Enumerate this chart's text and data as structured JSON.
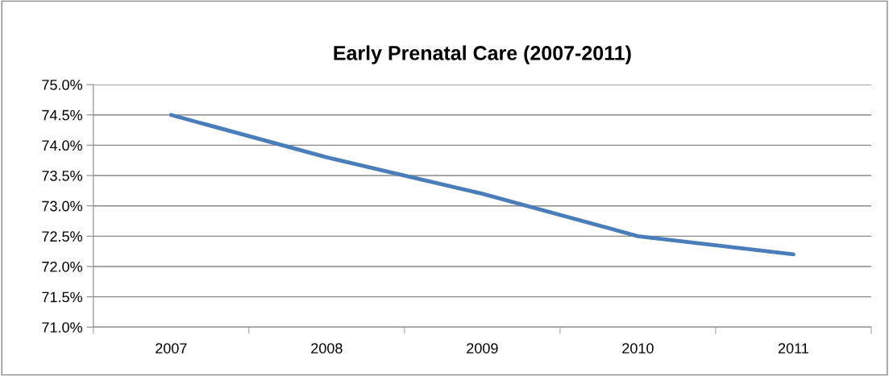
{
  "chart_data": {
    "type": "line",
    "title": "Early Prenatal Care (2007-2011)",
    "categories": [
      "2007",
      "2008",
      "2009",
      "2010",
      "2011"
    ],
    "series": [
      {
        "color": "#4a7ebb",
        "values": [
          74.5,
          73.8,
          73.2,
          72.5,
          72.2
        ]
      }
    ],
    "ylim": [
      71.0,
      75.0
    ],
    "yticks": [
      {
        "value": 71.0,
        "label": "71.0%"
      },
      {
        "value": 71.5,
        "label": "71.5%"
      },
      {
        "value": 72.0,
        "label": "72.0%"
      },
      {
        "value": 72.5,
        "label": "72.5%"
      },
      {
        "value": 73.0,
        "label": "73.0%"
      },
      {
        "value": 73.5,
        "label": "73.5%"
      },
      {
        "value": 74.0,
        "label": "74.0%"
      },
      {
        "value": 74.5,
        "label": "74.5%"
      },
      {
        "value": 75.0,
        "label": "75.0%"
      }
    ],
    "grid": "y",
    "marker": "none",
    "line_style": "solid"
  }
}
